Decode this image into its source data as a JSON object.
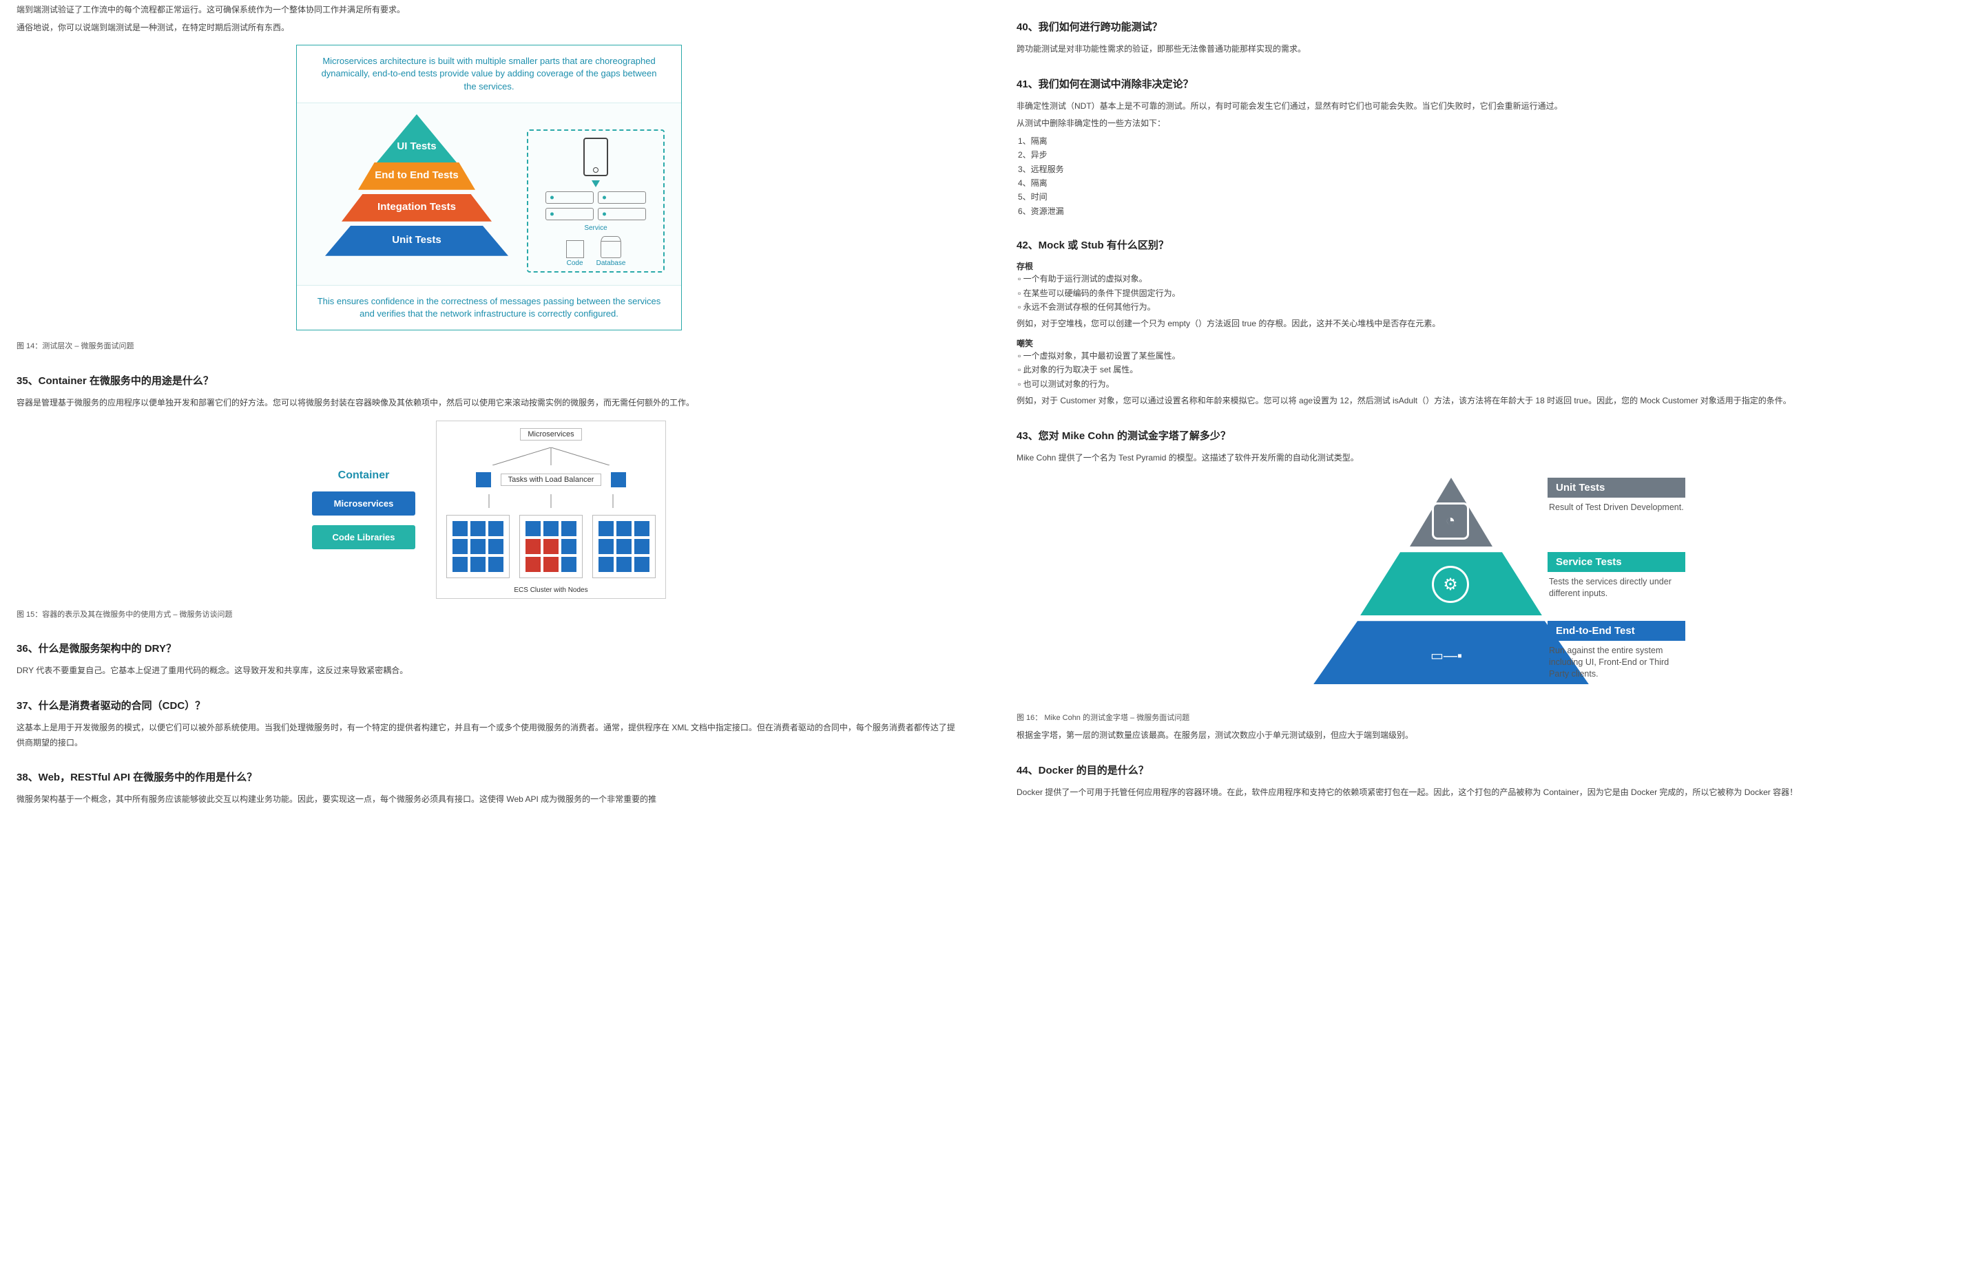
{
  "left": {
    "intro1": "端到端测试验证了工作流中的每个流程都正常运行。这可确保系统作为一个整体协同工作并满足所有要求。",
    "intro2": "通俗地说，你可以说端到端测试是一种测试，在特定时期后测试所有东西。",
    "fig1": {
      "topBand": "Microservices architecture is built with multiple smaller parts that are choreographed dynamically, end-to-end tests provide value by adding coverage of the gaps between the services.",
      "layers": [
        {
          "label": "UI Tests",
          "color": "#26b3a8"
        },
        {
          "label": "End to End Tests",
          "color": "#f28e1d"
        },
        {
          "label": "Integation Tests",
          "color": "#e65a28"
        },
        {
          "label": "Unit Tests",
          "color": "#1f6fbf"
        }
      ],
      "rightBox": {
        "service": "Service",
        "code": "Code",
        "database": "Database"
      },
      "bottomBand": "This ensures confidence in the correctness of messages passing between the services and verifies that the network infrastructure is correctly configured.",
      "caption": "图 14：测试层次 – 微服务面试问题"
    },
    "q35": {
      "title": "35、Container 在微服务中的用途是什么？",
      "body": "容器是管理基于微服务的应用程序以便单独开发和部署它们的好方法。您可以将微服务封装在容器映像及其依赖项中，然后可以使用它来滚动按需实例的微服务，而无需任何额外的工作。"
    },
    "fig2": {
      "leftTitle": "Container",
      "pills": [
        {
          "label": "Microservices",
          "color": "#1f6fbf"
        },
        {
          "label": "Code Libraries",
          "color": "#26b3a8"
        }
      ],
      "rightTop": "Microservices",
      "rightMid": "Tasks with Load Balancer",
      "sqBlue": "#1f6fbf",
      "sqRed": "#cf3a2e",
      "ecs": "ECS Cluster with Nodes",
      "caption": "图 15：容器的表示及其在微服务中的使用方式 – 微服务访谈问题"
    },
    "q36": {
      "title": "36、什么是微服务架构中的 DRY？",
      "body": "DRY 代表不要重复自己。它基本上促进了重用代码的概念。这导致开发和共享库，这反过来导致紧密耦合。"
    },
    "q37": {
      "title": "37、什么是消费者驱动的合同（CDC）？",
      "body": "这基本上是用于开发微服务的模式，以便它们可以被外部系统使用。当我们处理微服务时，有一个特定的提供者构建它，并且有一个或多个使用微服务的消费者。通常，提供程序在 XML 文档中指定接口。但在消费者驱动的合同中，每个服务消费者都传达了提供商期望的接口。"
    },
    "q38": {
      "title": "38、Web，RESTful API 在微服务中的作用是什么？",
      "body": "微服务架构基于一个概念，其中所有服务应该能够彼此交互以构建业务功能。因此，要实现这一点，每个微服务必须具有接口。这使得 Web API 成为微服务的一个非常重要的推"
    }
  },
  "right": {
    "q40": {
      "title": "40、我们如何进行跨功能测试？",
      "body": "跨功能测试是对非功能性需求的验证，即那些无法像普通功能那样实现的需求。"
    },
    "q41": {
      "title": "41、我们如何在测试中消除非决定论？",
      "body": "非确定性测试（NDT）基本上是不可靠的测试。所以，有时可能会发生它们通过，显然有时它们也可能会失败。当它们失败时，它们会重新运行通过。",
      "lead": "从测试中删除非确定性的一些方法如下：",
      "items": [
        "1、隔离",
        "2、异步",
        "3、远程服务",
        "4、隔离",
        "5、时间",
        "6、资源泄漏"
      ]
    },
    "q42": {
      "title": "42、Mock 或 Stub 有什么区别？",
      "stubTitle": "存根",
      "stubItems": [
        "一个有助于运行测试的虚拟对象。",
        "在某些可以硬编码的条件下提供固定行为。",
        "永远不会测试存根的任何其他行为。"
      ],
      "stubEx": "例如，对于空堆栈，您可以创建一个只为 empty（）方法返回 true 的存根。因此，这并不关心堆栈中是否存在元素。",
      "mockTitle": "嘲笑",
      "mockItems": [
        "一个虚拟对象，其中最初设置了某些属性。",
        "此对象的行为取决于 set 属性。",
        "也可以测试对象的行为。"
      ],
      "mockEx": "例如，对于 Customer 对象，您可以通过设置名称和年龄来模拟它。您可以将 age设置为 12，然后测试 isAdult（）方法，该方法将在年龄大于 18 时返回 true。因此，您的 Mock Customer 对象适用于指定的条件。"
    },
    "q43": {
      "title": "43、您对 Mike Cohn 的测试金字塔了解多少？",
      "body": "Mike Cohn 提供了一个名为 Test Pyramid 的模型。这描述了软件开发所需的自动化测试类型。"
    },
    "fig3": {
      "colors": {
        "unit": "#6f7a85",
        "service": "#1ab3a6",
        "e2e": "#1f6fbf"
      },
      "unit": {
        "hdr": "Unit Tests",
        "txt": "Result of Test Driven Development."
      },
      "service": {
        "hdr": "Service Tests",
        "txt": "Tests the services directly under different inputs."
      },
      "e2e": {
        "hdr": "End-to-End Test",
        "txt": "Run against the entire system including UI, Front-End or Third Party clients."
      },
      "caption": "图 16： Mike Cohn 的测试金字塔 – 微服务面试问题",
      "caption2": "根据金字塔，第一层的测试数量应该最高。在服务层，测试次数应小于单元测试级别，但应大于端到端级别。"
    },
    "q44": {
      "title": "44、Docker 的目的是什么？",
      "body": "Docker 提供了一个可用于托管任何应用程序的容器环境。在此，软件应用程序和支持它的依赖项紧密打包在一起。因此，这个打包的产品被称为 Container，因为它是由 Docker 完成的，所以它被称为 Docker 容器！"
    }
  }
}
